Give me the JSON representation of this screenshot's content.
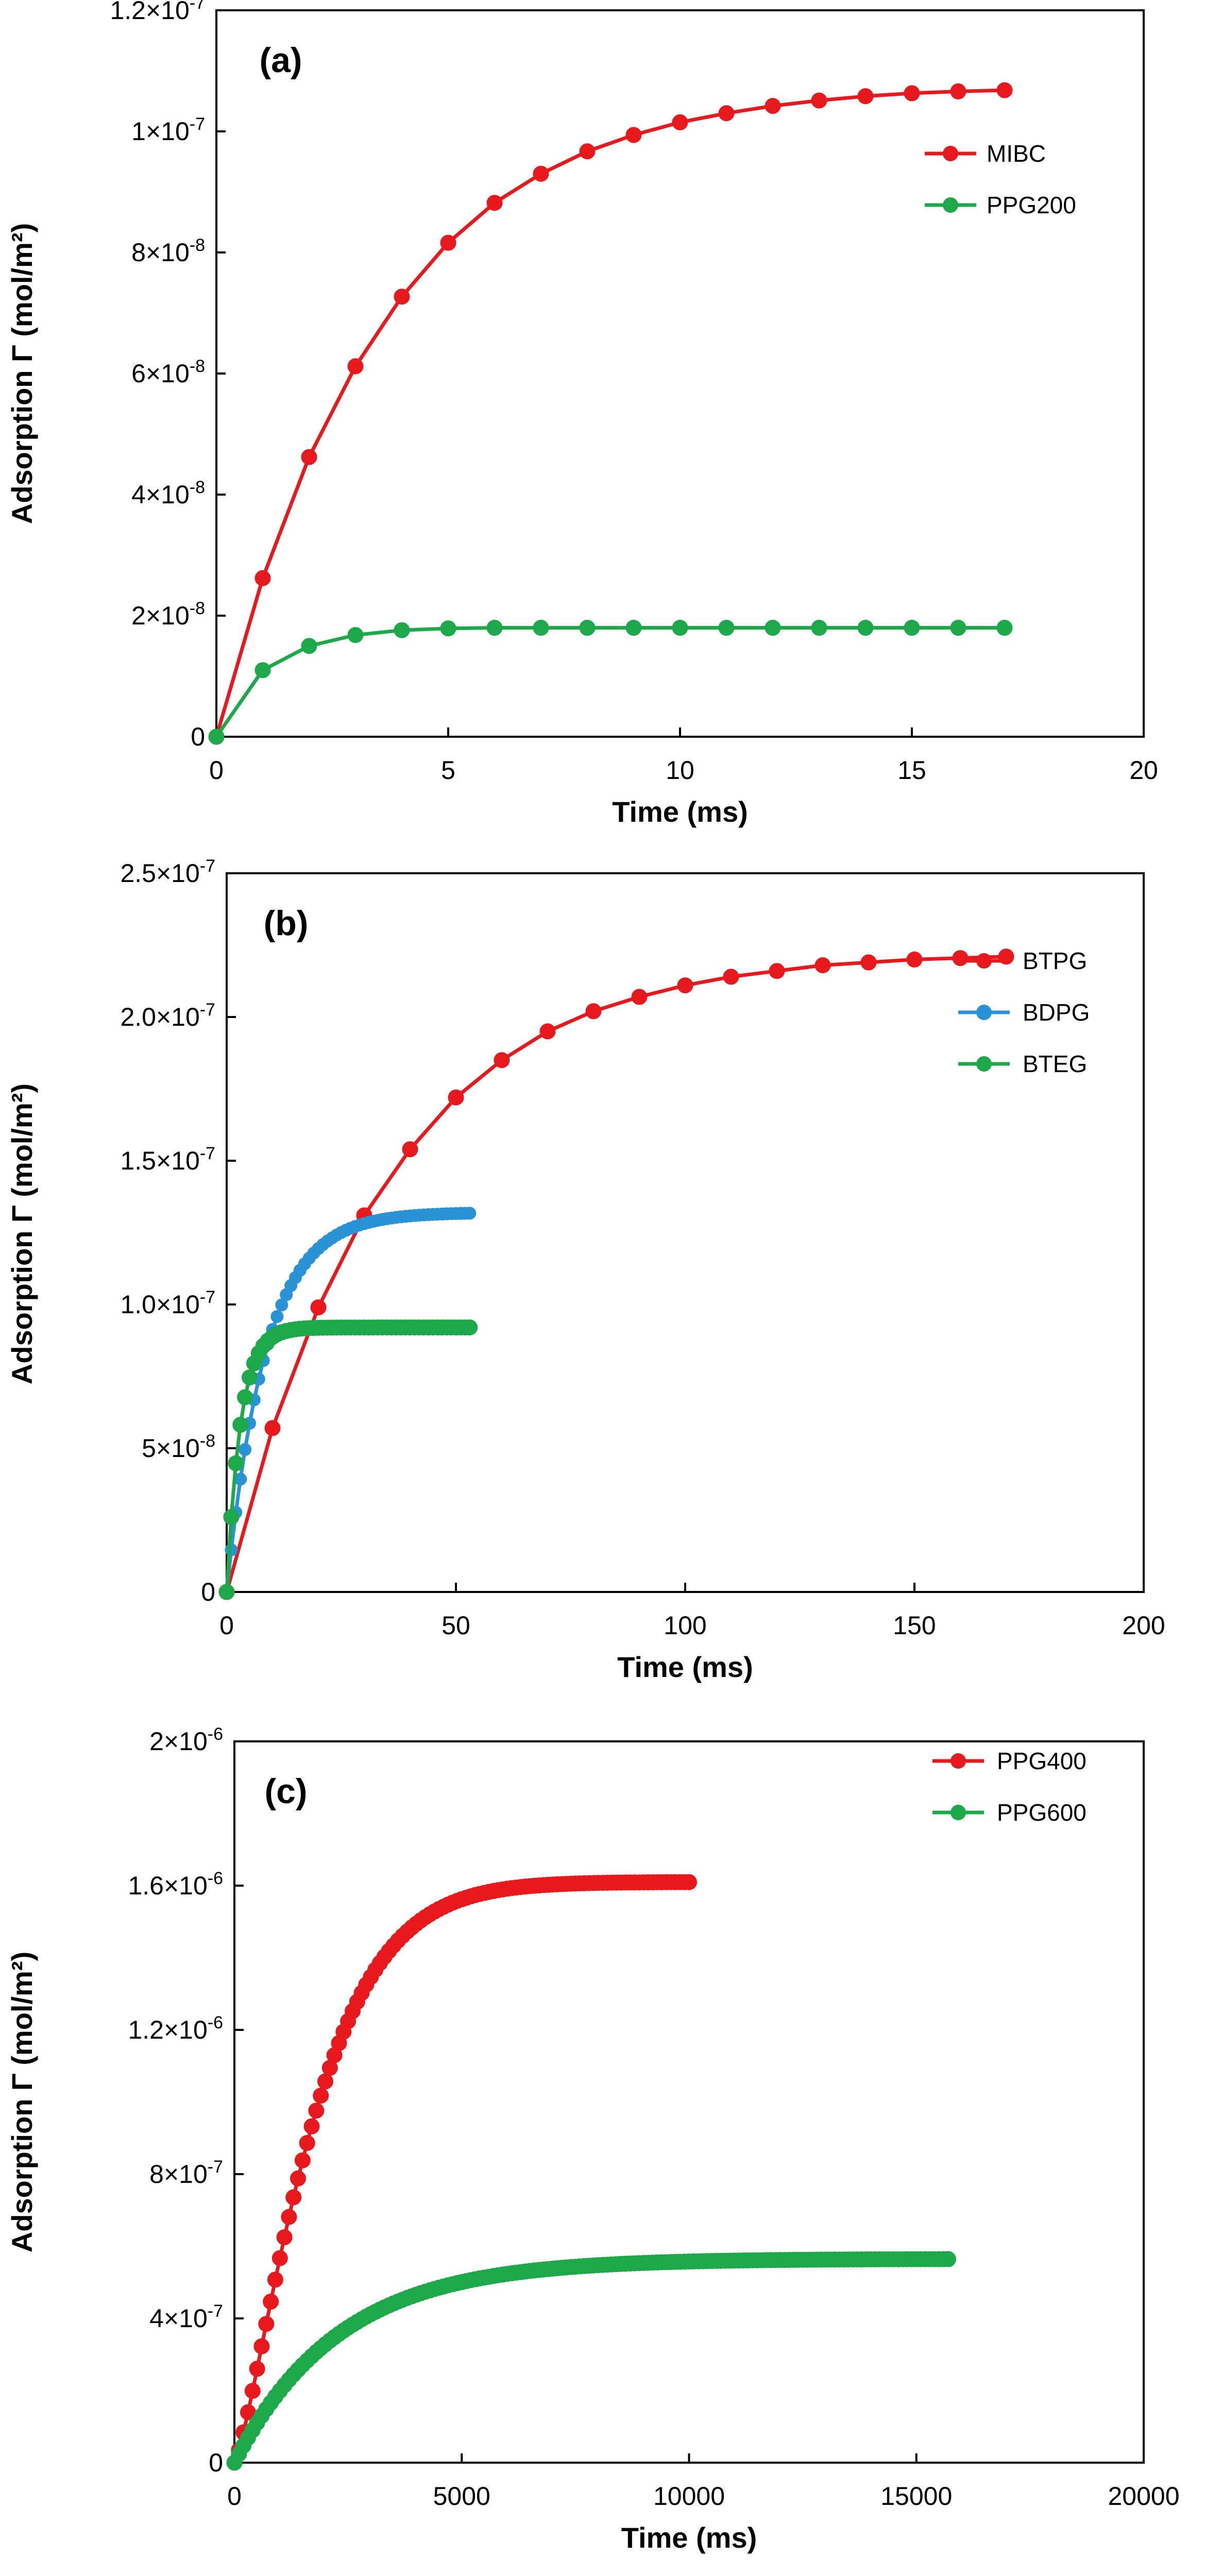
{
  "chart_data": [
    {
      "panel_label": "(a)",
      "type": "line",
      "xlabel": "Time (ms)",
      "ylabel": "Adsorption Γ (mol/m²)",
      "xlim": [
        0,
        20
      ],
      "ylim": [
        0,
        1.2e-07
      ],
      "xticks": [
        0,
        5,
        10,
        15,
        20
      ],
      "xtick_labels": [
        "0",
        "5",
        "10",
        "15",
        "20"
      ],
      "yticks": [
        0,
        2e-08,
        4e-08,
        6e-08,
        8e-08,
        1e-07,
        1.2e-07
      ],
      "ytick_labels": [
        {
          "mant": "0",
          "exp": ""
        },
        {
          "mant": "2×10",
          "exp": "-8"
        },
        {
          "mant": "4×10",
          "exp": "-8"
        },
        {
          "mant": "6×10",
          "exp": "-8"
        },
        {
          "mant": "8×10",
          "exp": "-8"
        },
        {
          "mant": "1×10",
          "exp": "-7"
        },
        {
          "mant": "1.2×10",
          "exp": "-7"
        }
      ],
      "legend_position": "top-right",
      "series": [
        {
          "name": "MIBC",
          "color": "#e8191c",
          "x": [
            0,
            1,
            2,
            3,
            4,
            5,
            6,
            7,
            8,
            9,
            10,
            11,
            12,
            13,
            14,
            15,
            16,
            17
          ],
          "y": [
            0,
            2.62e-08,
            4.62e-08,
            6.12e-08,
            7.27e-08,
            8.16e-08,
            8.82e-08,
            9.3e-08,
            9.67e-08,
            9.94e-08,
            1.015e-07,
            1.03e-07,
            1.042e-07,
            1.051e-07,
            1.058e-07,
            1.063e-07,
            1.066e-07,
            1.068e-07
          ]
        },
        {
          "name": "PPG200",
          "color": "#1da84a",
          "x": [
            0,
            1,
            2,
            3,
            4,
            5,
            6,
            7,
            8,
            9,
            10,
            11,
            12,
            13,
            14,
            15,
            16,
            17
          ],
          "y": [
            0,
            1.1e-08,
            1.5e-08,
            1.68e-08,
            1.76e-08,
            1.79e-08,
            1.8e-08,
            1.8e-08,
            1.8e-08,
            1.8e-08,
            1.8e-08,
            1.8e-08,
            1.8e-08,
            1.8e-08,
            1.8e-08,
            1.8e-08,
            1.8e-08,
            1.8e-08
          ]
        }
      ]
    },
    {
      "panel_label": "(b)",
      "type": "line",
      "xlabel": "Time (ms)",
      "ylabel": "Adsorption Γ (mol/m²)",
      "xlim": [
        0,
        200
      ],
      "ylim": [
        0,
        2.5e-07
      ],
      "xticks": [
        0,
        50,
        100,
        150,
        200
      ],
      "xtick_labels": [
        "0",
        "50",
        "100",
        "150",
        "200"
      ],
      "yticks": [
        0,
        5e-08,
        1e-07,
        1.5e-07,
        2e-07,
        2.5e-07
      ],
      "ytick_labels": [
        {
          "mant": "0",
          "exp": ""
        },
        {
          "mant": "5×10",
          "exp": "-8"
        },
        {
          "mant": "1.0×10",
          "exp": "-7"
        },
        {
          "mant": "1.5×10",
          "exp": "-7"
        },
        {
          "mant": "2.0×10",
          "exp": "-7"
        },
        {
          "mant": "2.5×10",
          "exp": "-7"
        }
      ],
      "legend_position": "top-right",
      "series": [
        {
          "name": "BTPG",
          "color": "#e8191c",
          "x": [
            0,
            10,
            20,
            30,
            40,
            50,
            60,
            70,
            80,
            90,
            100,
            110,
            120,
            130,
            140,
            150,
            160,
            170
          ],
          "y": [
            0,
            5.7e-08,
            9.9e-08,
            1.31e-07,
            1.54e-07,
            1.72e-07,
            1.85e-07,
            1.95e-07,
            2.02e-07,
            2.07e-07,
            2.11e-07,
            2.14e-07,
            2.16e-07,
            2.18e-07,
            2.19e-07,
            2.2e-07,
            2.205e-07,
            2.21e-07
          ],
          "marker_size": "large"
        },
        {
          "name": "BDPG",
          "color": "#2a93d5",
          "model": "saturating",
          "x_start": 0,
          "x_end": 53,
          "n_points": 54,
          "y_max": 1.32e-07,
          "time_constant": 8.5,
          "marker_size": "small"
        },
        {
          "name": "BTEG",
          "color": "#1da84a",
          "model": "saturating",
          "x_start": 0,
          "x_end": 53,
          "n_points": 54,
          "y_max": 9.2e-08,
          "time_constant": 3.0,
          "marker_size": "large"
        }
      ]
    },
    {
      "panel_label": "(c)",
      "type": "line",
      "xlabel": "Time (ms)",
      "ylabel": "Adsorption Γ (mol/m²)",
      "xlim": [
        0,
        20000
      ],
      "ylim": [
        0,
        2e-06
      ],
      "xticks": [
        0,
        5000,
        10000,
        15000,
        20000
      ],
      "xtick_labels": [
        "0",
        "5000",
        "10000",
        "15000",
        "20000"
      ],
      "yticks": [
        0,
        4e-07,
        8e-07,
        1.2e-06,
        1.6e-06,
        2e-06
      ],
      "ytick_labels": [
        {
          "mant": "0",
          "exp": ""
        },
        {
          "mant": "4×10",
          "exp": "-7"
        },
        {
          "mant": "8×10",
          "exp": "-7"
        },
        {
          "mant": "1.2×10",
          "exp": "-6"
        },
        {
          "mant": "1.6×10",
          "exp": "-6"
        },
        {
          "mant": "2×10",
          "exp": "-6"
        }
      ],
      "legend_position": "top-right",
      "series": [
        {
          "name": "PPG400",
          "color": "#e8191c",
          "model": "sigmoid",
          "x_start": 0,
          "x_end": 10000,
          "n_points": 101,
          "y_max": 1.61e-06,
          "time_constant": 1900,
          "shape_exponent": 1.3,
          "marker_size": "large"
        },
        {
          "name": "PPG600",
          "color": "#1da84a",
          "model": "saturating",
          "x_start": 0,
          "x_end": 15700,
          "n_points": 158,
          "y_max": 5.65e-07,
          "time_constant": 2300,
          "marker_size": "large"
        }
      ]
    }
  ]
}
